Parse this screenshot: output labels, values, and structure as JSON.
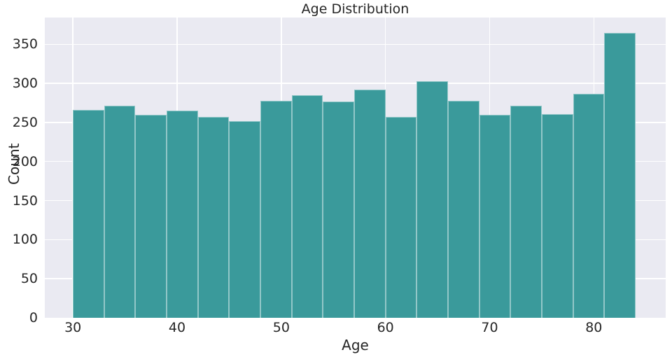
{
  "chart_data": {
    "type": "bar",
    "chart_kind": "histogram",
    "title": "Age Distribution",
    "xlabel": "Age",
    "ylabel": "Count",
    "bin_edges": [
      30,
      33,
      36,
      39,
      42,
      45,
      48,
      51,
      54,
      57,
      60,
      63,
      66,
      69,
      72,
      75,
      78,
      81,
      84
    ],
    "counts": [
      266,
      271,
      260,
      265,
      257,
      252,
      278,
      285,
      277,
      292,
      257,
      303,
      278,
      260,
      271,
      261,
      287,
      365
    ],
    "xticks": [
      30,
      40,
      50,
      60,
      70,
      80
    ],
    "yticks": [
      0,
      50,
      100,
      150,
      200,
      250,
      300,
      350
    ],
    "xlim": [
      27.3,
      86.9
    ],
    "ylim": [
      0,
      384.3
    ],
    "grid": true,
    "legend": false,
    "colors": {
      "bar_fill": "#3a9a9b",
      "bar_edge": "#ffffff",
      "plot_background": "#eaeaf2",
      "grid_line": "#ffffff",
      "text": "#262626"
    }
  }
}
